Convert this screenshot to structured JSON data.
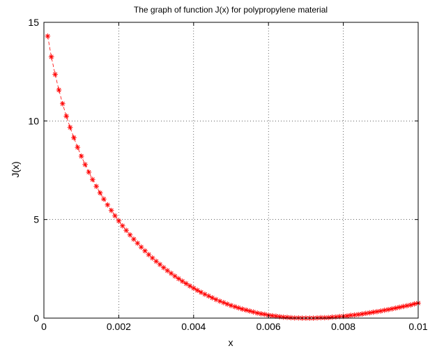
{
  "chart_data": {
    "type": "line",
    "title": "The graph of function J(x) for polypropylene material",
    "xlabel": "x",
    "ylabel": "J(x)",
    "xlim": [
      0,
      0.01
    ],
    "ylim": [
      0,
      15
    ],
    "xticks": [
      0,
      0.002,
      0.004,
      0.006,
      0.008,
      0.01
    ],
    "xtick_labels": [
      "0",
      "0.002",
      "0.004",
      "0.006",
      "0.008",
      "0.01"
    ],
    "yticks": [
      0,
      5,
      10,
      15
    ],
    "ytick_labels": [
      "0",
      "5",
      "10",
      "15"
    ],
    "grid": true,
    "colors": {
      "series": "#ff0000",
      "grid": "#000000",
      "axes": "#000000"
    },
    "series": [
      {
        "marker": "asterisk",
        "linestyle": "dashed",
        "x": [
          0.0001,
          0.0002,
          0.0003,
          0.0004,
          0.0005,
          0.0006,
          0.0007,
          0.0008,
          0.0009,
          0.001,
          0.0011,
          0.0012,
          0.0013,
          0.0014,
          0.0015,
          0.0016,
          0.0017,
          0.0018,
          0.0019,
          0.002,
          0.0021,
          0.0022,
          0.0023,
          0.0024,
          0.0025,
          0.0026,
          0.0027,
          0.0028,
          0.0029,
          0.003,
          0.0031,
          0.0032,
          0.0033,
          0.0034,
          0.0035,
          0.0036,
          0.0037,
          0.0038,
          0.0039,
          0.004,
          0.0041,
          0.0042,
          0.0043,
          0.0044,
          0.0045,
          0.0046,
          0.0047,
          0.0048,
          0.0049,
          0.005,
          0.0051,
          0.0052,
          0.0053,
          0.0054,
          0.0055,
          0.0056,
          0.0057,
          0.0058,
          0.0059,
          0.006,
          0.0061,
          0.0062,
          0.0063,
          0.0064,
          0.0065,
          0.0066,
          0.0067,
          0.0068,
          0.0069,
          0.007,
          0.0071,
          0.0072,
          0.0073,
          0.0074,
          0.0075,
          0.0076,
          0.0077,
          0.0078,
          0.0079,
          0.008,
          0.0081,
          0.0082,
          0.0083,
          0.0084,
          0.0085,
          0.0086,
          0.0087,
          0.0088,
          0.0089,
          0.009,
          0.0091,
          0.0092,
          0.0093,
          0.0094,
          0.0095,
          0.0096,
          0.0097,
          0.0098,
          0.0099,
          0.01
        ],
        "y": [
          14.3,
          13.25,
          12.36,
          11.57,
          10.87,
          10.24,
          9.67,
          9.15,
          8.66,
          8.21,
          7.79,
          7.4,
          7.03,
          6.68,
          6.35,
          6.04,
          5.74,
          5.46,
          5.19,
          4.93,
          4.68,
          4.45,
          4.22,
          4.0,
          3.8,
          3.6,
          3.41,
          3.22,
          3.05,
          2.88,
          2.72,
          2.56,
          2.41,
          2.27,
          2.13,
          2.0,
          1.87,
          1.75,
          1.63,
          1.52,
          1.41,
          1.31,
          1.21,
          1.12,
          1.03,
          0.94,
          0.86,
          0.79,
          0.71,
          0.64,
          0.58,
          0.52,
          0.46,
          0.41,
          0.36,
          0.31,
          0.26,
          0.22,
          0.19,
          0.15,
          0.12,
          0.1,
          0.07,
          0.05,
          0.04,
          0.02,
          0.01,
          0.01,
          0.0,
          0.0,
          0.0,
          0.0,
          0.01,
          0.02,
          0.02,
          0.03,
          0.05,
          0.06,
          0.08,
          0.09,
          0.11,
          0.14,
          0.16,
          0.18,
          0.21,
          0.24,
          0.27,
          0.3,
          0.33,
          0.36,
          0.4,
          0.43,
          0.47,
          0.51,
          0.55,
          0.59,
          0.63,
          0.67,
          0.72,
          0.76
        ]
      }
    ]
  }
}
